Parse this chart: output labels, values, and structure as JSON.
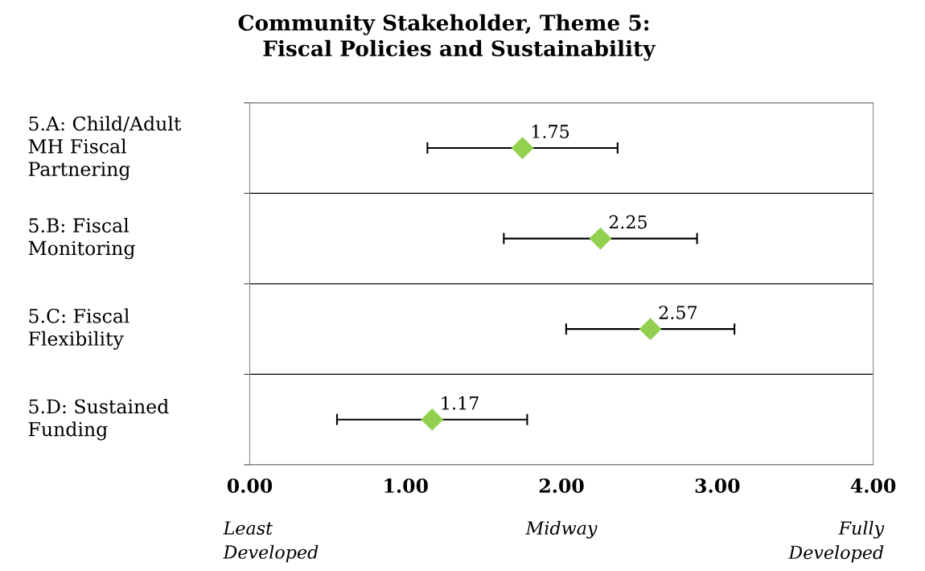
{
  "chart_data": {
    "type": "scatter",
    "orientation": "horizontal",
    "title": "Community Stakeholder, Theme 5:\n    Fiscal Policies and Sustainability",
    "categories": [
      "5.A: Child/Adult\nMH Fiscal\nPartnering",
      "5.B: Fiscal\nMonitoring",
      "5.C: Fiscal\nFlexibility",
      "5.D: Sustained\nFunding"
    ],
    "values": [
      1.75,
      2.25,
      2.57,
      1.17
    ],
    "errors": [
      0.61,
      0.62,
      0.54,
      0.61
    ],
    "color": "#92d050",
    "marker": "diamond",
    "data_labels": true,
    "xlim": [
      0,
      4
    ],
    "xticks": [
      {
        "value": 0,
        "label": "0.00"
      },
      {
        "value": 1,
        "label": "1.00"
      },
      {
        "value": 2,
        "label": "2.00"
      },
      {
        "value": 3,
        "label": "3.00"
      },
      {
        "value": 4,
        "label": "4.00"
      }
    ],
    "grid": "y",
    "annotations": [
      "Least\nDeveloped",
      "Midway",
      "Fully\nDeveloped"
    ]
  }
}
